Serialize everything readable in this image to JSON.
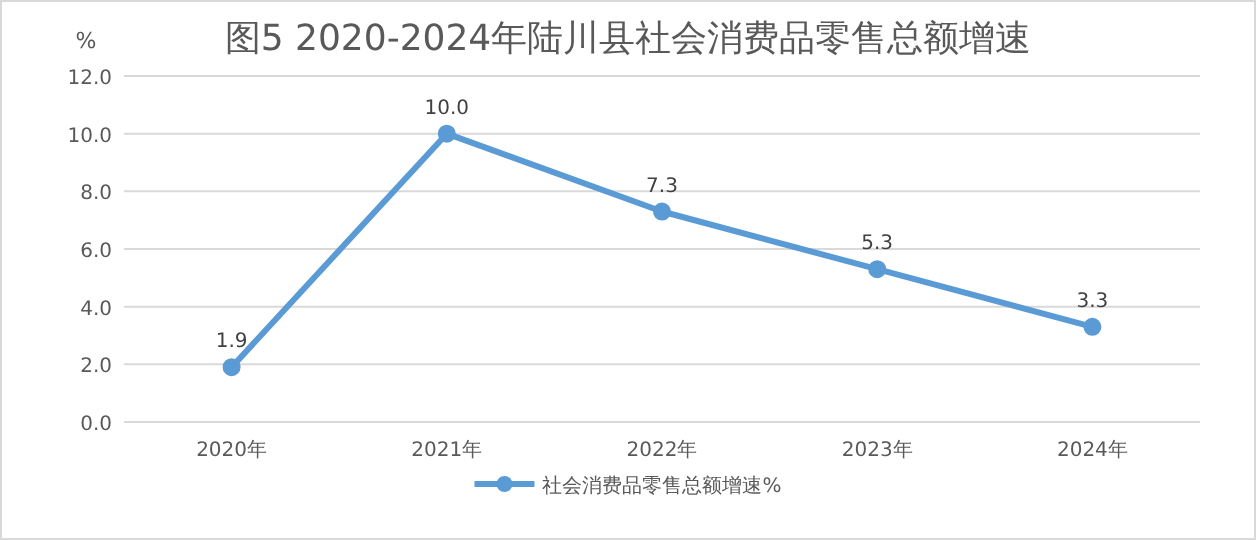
{
  "chart_data": {
    "type": "line",
    "title": "图5  2020-2024年陆川县社会消费品零售总额增速",
    "ylabel": "%",
    "categories": [
      "2020年",
      "2021年",
      "2022年",
      "2023年",
      "2024年"
    ],
    "series": [
      {
        "name": "社会消费品零售总额增速%",
        "color": "#5b9bd5",
        "values": [
          1.9,
          10.0,
          7.3,
          5.3,
          3.3
        ],
        "value_labels": [
          "1.9",
          "10.0",
          "7.3",
          "5.3",
          "3.3"
        ]
      }
    ],
    "ylim": [
      0,
      12
    ],
    "yticks": [
      {
        "value": 0,
        "label": "0.0"
      },
      {
        "value": 2,
        "label": "2.0"
      },
      {
        "value": 4,
        "label": "4.0"
      },
      {
        "value": 6,
        "label": "6.0"
      },
      {
        "value": 8,
        "label": "8.0"
      },
      {
        "value": 10,
        "label": "10.0"
      },
      {
        "value": 12,
        "label": "12.0"
      }
    ],
    "grid": "y",
    "legend": "bottom",
    "marker": "circle",
    "line_style": "solid"
  }
}
